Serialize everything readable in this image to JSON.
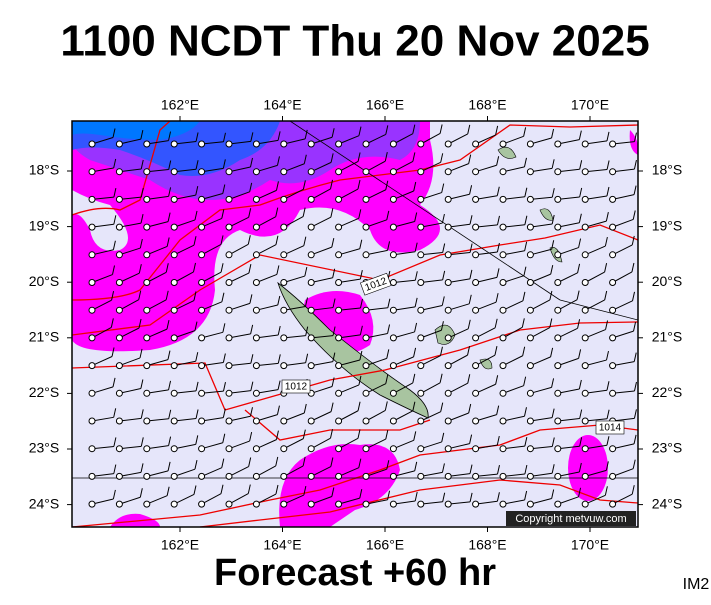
{
  "header": {
    "title": "1100 NCDT Thu 20 Nov 2025"
  },
  "footer": {
    "forecast": "Forecast +60 hr",
    "code": "IM2"
  },
  "map": {
    "lon_ticks": [
      {
        "value": 162,
        "label": "162°E"
      },
      {
        "value": 164,
        "label": "164°E"
      },
      {
        "value": 166,
        "label": "166°E"
      },
      {
        "value": 168,
        "label": "168°E"
      },
      {
        "value": 170,
        "label": "170°E"
      }
    ],
    "lat_ticks": [
      {
        "value": -18,
        "label": "18°S"
      },
      {
        "value": -19,
        "label": "19°S"
      },
      {
        "value": -20,
        "label": "20°S"
      },
      {
        "value": -21,
        "label": "21°S"
      },
      {
        "value": -22,
        "label": "22°S"
      },
      {
        "value": -23,
        "label": "23°S"
      },
      {
        "value": -24,
        "label": "24°S"
      }
    ],
    "isobar_labels": [
      "1012",
      "1012",
      "1014"
    ],
    "copyright": "Copyright metvuw.com"
  }
}
